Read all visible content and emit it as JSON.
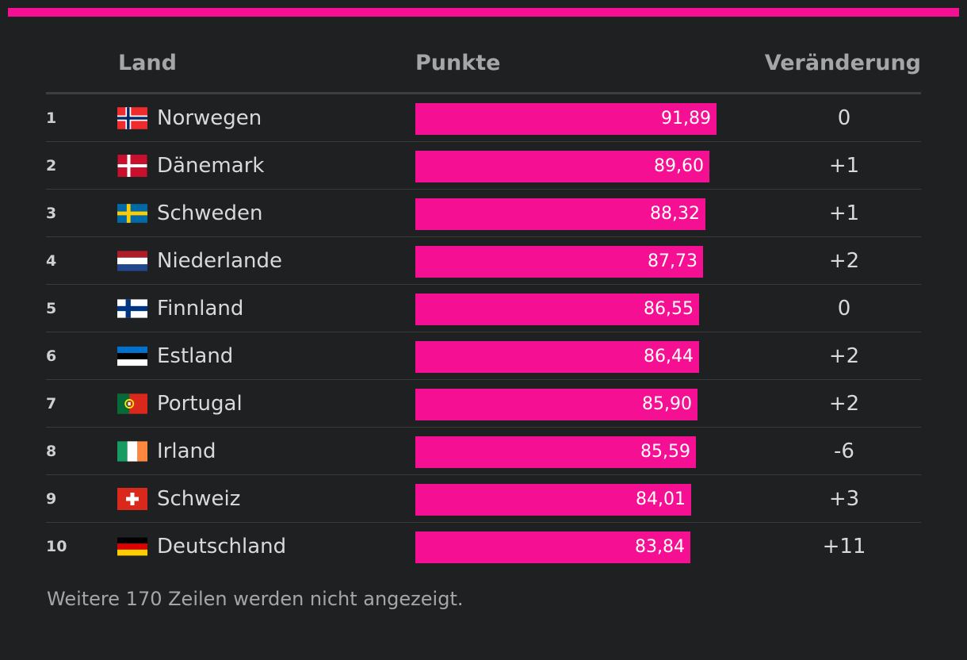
{
  "colors": {
    "accent": "#f50f93",
    "background": "#1f2022",
    "header_text": "#a6a6a6",
    "row_text": "#d9d9d9"
  },
  "headers": {
    "land": "Land",
    "points": "Punkte",
    "change": "Veränderung"
  },
  "footer": {
    "note": "Weitere 170 Zeilen werden nicht angezeigt."
  },
  "chart_data": {
    "type": "table",
    "columns": [
      "",
      "Land",
      "Punkte",
      "Veränderung"
    ],
    "value_range": [
      0,
      100
    ],
    "rows": [
      {
        "rank": "1",
        "flag": "flag-norway-icon",
        "country": "Norwegen",
        "value": 91.89,
        "label": "91,89",
        "change": "0"
      },
      {
        "rank": "2",
        "flag": "flag-denmark-icon",
        "country": "Dänemark",
        "value": 89.6,
        "label": "89,60",
        "change": "+1"
      },
      {
        "rank": "3",
        "flag": "flag-sweden-icon",
        "country": "Schweden",
        "value": 88.32,
        "label": "88,32",
        "change": "+1"
      },
      {
        "rank": "4",
        "flag": "flag-netherlands-icon",
        "country": "Niederlande",
        "value": 87.73,
        "label": "87,73",
        "change": "+2"
      },
      {
        "rank": "5",
        "flag": "flag-finland-icon",
        "country": "Finnland",
        "value": 86.55,
        "label": "86,55",
        "change": "0"
      },
      {
        "rank": "6",
        "flag": "flag-estonia-icon",
        "country": "Estland",
        "value": 86.44,
        "label": "86,44",
        "change": "+2"
      },
      {
        "rank": "7",
        "flag": "flag-portugal-icon",
        "country": "Portugal",
        "value": 85.9,
        "label": "85,90",
        "change": "+2"
      },
      {
        "rank": "8",
        "flag": "flag-ireland-icon",
        "country": "Irland",
        "value": 85.59,
        "label": "85,59",
        "change": "-6"
      },
      {
        "rank": "9",
        "flag": "flag-switzerland-icon",
        "country": "Schweiz",
        "value": 84.01,
        "label": "84,01",
        "change": "+3"
      },
      {
        "rank": "10",
        "flag": "flag-germany-icon",
        "country": "Deutschland",
        "value": 83.84,
        "label": "83,84",
        "change": "+11"
      }
    ]
  }
}
